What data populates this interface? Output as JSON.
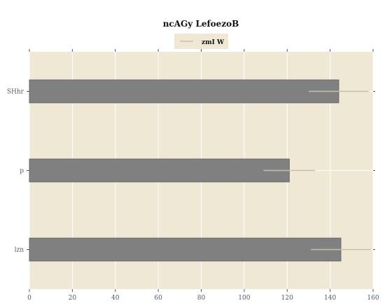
{
  "chart_data": {
    "type": "bar",
    "orientation": "horizontal",
    "title": "ncAGy LefoezoB",
    "xlabel": "",
    "ylabel": "",
    "categories": [
      "SHhr",
      "p",
      "lzn"
    ],
    "series": [
      {
        "name": "zmI W",
        "values": [
          144,
          121,
          145
        ],
        "error": [
          14,
          12,
          14
        ],
        "color": "#808080"
      }
    ],
    "xlim": [
      0,
      160
    ],
    "xticks": [
      0,
      20,
      40,
      60,
      80,
      100,
      120,
      140,
      160
    ],
    "grid": true,
    "legend_position": "top-center",
    "colors": {
      "plot_background": "#efe8d5",
      "grid": "#ffffff",
      "bar": "#808080",
      "error_bar": "#c8c0ad"
    }
  }
}
